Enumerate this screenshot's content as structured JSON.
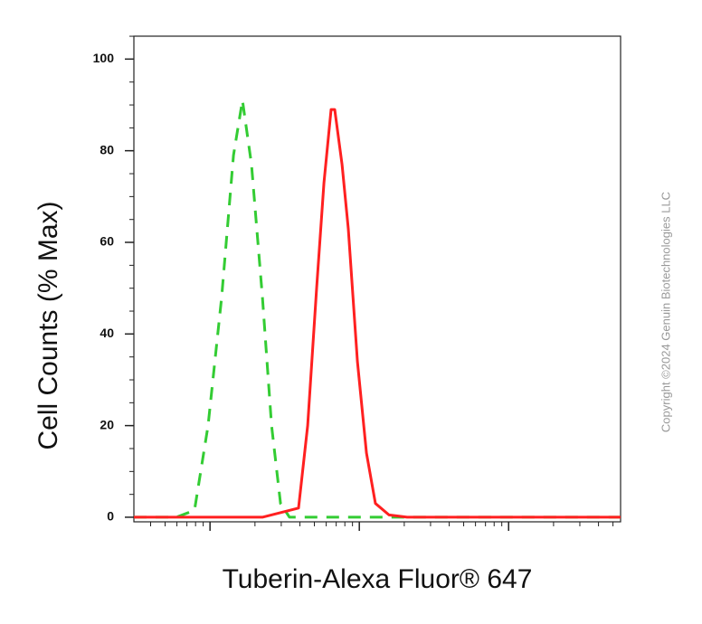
{
  "chart_data": {
    "type": "line",
    "x_label": "Tuberin-Alexa Fluor® 647",
    "y_label": "Cell Counts (% Max)",
    "annotation": "Copyright ©2024 Genuin Biotechnologies LLC",
    "xlim": [
      0.49,
      3.75
    ],
    "ylim": [
      -1,
      105
    ],
    "yticks": [
      0,
      20,
      40,
      60,
      80,
      100
    ],
    "series": [
      {
        "color": "#33cc33",
        "dashed": true,
        "x": [
          0.49,
          0.775,
          0.896,
          0.987,
          1.078,
          1.157,
          1.217,
          1.278,
          1.351,
          1.412,
          1.472,
          1.532,
          3.75
        ],
        "values": [
          0,
          0,
          1.5,
          20,
          48,
          79,
          91,
          77,
          48,
          20,
          3,
          0,
          0
        ]
      },
      {
        "color": "#ff2020",
        "dashed": false,
        "x": [
          0.49,
          1.351,
          1.593,
          1.654,
          1.714,
          1.763,
          1.811,
          1.835,
          1.884,
          1.926,
          1.987,
          2.048,
          2.108,
          2.199,
          2.32,
          3.75
        ],
        "values": [
          0,
          0,
          2,
          20,
          50,
          73,
          89,
          89,
          77,
          63,
          34,
          14,
          3,
          0.5,
          0,
          0
        ]
      }
    ]
  }
}
